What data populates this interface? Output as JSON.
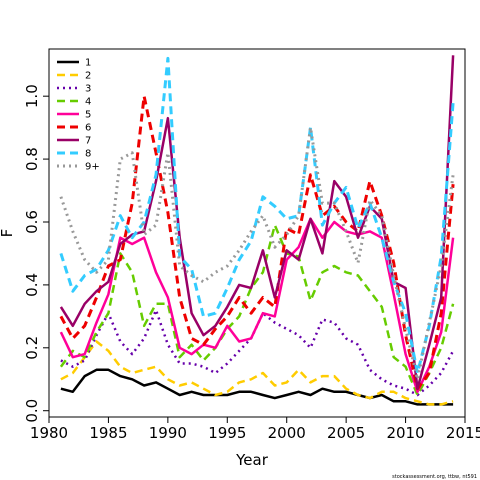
{
  "chart_data": {
    "type": "line",
    "xlabel": "Year",
    "ylabel": "F",
    "xlim": [
      1980,
      2015
    ],
    "ylim": [
      -0.02,
      1.15
    ],
    "x_ticks": [
      1980,
      1985,
      1990,
      1995,
      2000,
      2005,
      2010,
      2015
    ],
    "y_ticks": [
      0.0,
      0.2,
      0.4,
      0.6,
      0.8,
      1.0
    ],
    "y_tick_labels": [
      "0.0",
      "0.2",
      "0.4",
      "0.6",
      "0.8",
      "1.0"
    ],
    "legend_position": "top-left",
    "footnote": "stockassessment.org, ttbw, nt591",
    "x": [
      1981,
      1982,
      1983,
      1984,
      1985,
      1986,
      1987,
      1988,
      1989,
      1990,
      1991,
      1992,
      1993,
      1994,
      1995,
      1996,
      1997,
      1998,
      1999,
      2000,
      2001,
      2002,
      2003,
      2004,
      2005,
      2006,
      2007,
      2008,
      2009,
      2010,
      2011,
      2012,
      2013,
      2014
    ],
    "series": [
      {
        "name": "1",
        "color": "#000000",
        "dash": "solid",
        "width": 2.5,
        "values": [
          0.07,
          0.06,
          0.11,
          0.13,
          0.13,
          0.11,
          0.1,
          0.08,
          0.09,
          0.07,
          0.05,
          0.06,
          0.05,
          0.05,
          0.05,
          0.06,
          0.06,
          0.05,
          0.04,
          0.05,
          0.06,
          0.05,
          0.07,
          0.06,
          0.06,
          0.05,
          0.04,
          0.05,
          0.03,
          0.03,
          0.02,
          0.02,
          0.02,
          0.02
        ]
      },
      {
        "name": "2",
        "color": "#ffcc00",
        "dash": "8,5",
        "width": 2.5,
        "values": [
          0.1,
          0.12,
          0.17,
          0.22,
          0.19,
          0.14,
          0.12,
          0.13,
          0.14,
          0.1,
          0.08,
          0.09,
          0.07,
          0.05,
          0.06,
          0.09,
          0.1,
          0.12,
          0.08,
          0.09,
          0.13,
          0.09,
          0.11,
          0.11,
          0.07,
          0.05,
          0.04,
          0.06,
          0.06,
          0.04,
          0.03,
          0.02,
          0.02,
          0.03
        ]
      },
      {
        "name": "3",
        "color": "#6600aa",
        "dash": "2,4",
        "width": 2.5,
        "values": [
          0.16,
          0.14,
          0.16,
          0.24,
          0.31,
          0.22,
          0.18,
          0.23,
          0.32,
          0.21,
          0.15,
          0.15,
          0.14,
          0.12,
          0.15,
          0.19,
          0.23,
          0.31,
          0.28,
          0.26,
          0.24,
          0.2,
          0.29,
          0.28,
          0.23,
          0.21,
          0.13,
          0.1,
          0.08,
          0.07,
          0.05,
          0.08,
          0.12,
          0.19
        ]
      },
      {
        "name": "4",
        "color": "#66cc00",
        "dash": "8,5",
        "width": 2.5,
        "values": [
          0.14,
          0.19,
          0.17,
          0.25,
          0.31,
          0.5,
          0.44,
          0.27,
          0.34,
          0.34,
          0.17,
          0.21,
          0.16,
          0.2,
          0.26,
          0.3,
          0.39,
          0.44,
          0.59,
          0.5,
          0.49,
          0.35,
          0.44,
          0.46,
          0.44,
          0.43,
          0.38,
          0.33,
          0.17,
          0.14,
          0.05,
          0.12,
          0.2,
          0.34
        ]
      },
      {
        "name": "5",
        "color": "#ff0099",
        "dash": "solid",
        "width": 2.5,
        "values": [
          0.25,
          0.17,
          0.18,
          0.28,
          0.37,
          0.55,
          0.53,
          0.55,
          0.44,
          0.36,
          0.2,
          0.18,
          0.21,
          0.2,
          0.27,
          0.22,
          0.23,
          0.31,
          0.3,
          0.48,
          0.52,
          0.61,
          0.55,
          0.6,
          0.57,
          0.56,
          0.57,
          0.55,
          0.37,
          0.18,
          0.06,
          0.14,
          0.25,
          0.55
        ]
      },
      {
        "name": "6",
        "color": "#ee0000",
        "dash": "8,5",
        "width": 3,
        "values": [
          0.3,
          0.23,
          0.27,
          0.36,
          0.46,
          0.48,
          0.66,
          1.0,
          0.82,
          0.63,
          0.36,
          0.23,
          0.21,
          0.26,
          0.3,
          0.36,
          0.31,
          0.36,
          0.33,
          0.58,
          0.56,
          0.75,
          0.62,
          0.65,
          0.6,
          0.57,
          0.73,
          0.62,
          0.47,
          0.24,
          0.07,
          0.12,
          0.31,
          0.72
        ]
      },
      {
        "name": "7",
        "color": "#990066",
        "dash": "solid",
        "width": 2.5,
        "values": [
          0.33,
          0.27,
          0.34,
          0.38,
          0.41,
          0.53,
          0.56,
          0.57,
          0.73,
          0.93,
          0.55,
          0.31,
          0.24,
          0.27,
          0.33,
          0.4,
          0.39,
          0.51,
          0.36,
          0.51,
          0.48,
          0.61,
          0.5,
          0.73,
          0.68,
          0.55,
          0.65,
          0.61,
          0.41,
          0.39,
          0.07,
          0.21,
          0.36,
          1.13
        ]
      },
      {
        "name": "8",
        "color": "#33ccff",
        "dash": "8,5",
        "width": 3,
        "values": [
          0.5,
          0.38,
          0.43,
          0.45,
          0.51,
          0.62,
          0.55,
          0.6,
          0.75,
          1.12,
          0.49,
          0.45,
          0.3,
          0.31,
          0.39,
          0.48,
          0.54,
          0.68,
          0.65,
          0.61,
          0.62,
          0.9,
          0.59,
          0.66,
          0.71,
          0.58,
          0.66,
          0.55,
          0.41,
          0.31,
          0.12,
          0.27,
          0.49,
          0.98
        ]
      },
      {
        "name": "9+",
        "color": "#999999",
        "dash": "2,4",
        "width": 3,
        "values": [
          0.68,
          0.57,
          0.48,
          0.44,
          0.48,
          0.8,
          0.82,
          0.56,
          0.59,
          0.82,
          0.46,
          0.43,
          0.41,
          0.44,
          0.46,
          0.51,
          0.57,
          0.62,
          0.52,
          0.56,
          0.62,
          0.9,
          0.66,
          0.66,
          0.57,
          0.47,
          0.67,
          0.62,
          0.43,
          0.26,
          0.1,
          0.28,
          0.46,
          0.75
        ]
      }
    ]
  }
}
